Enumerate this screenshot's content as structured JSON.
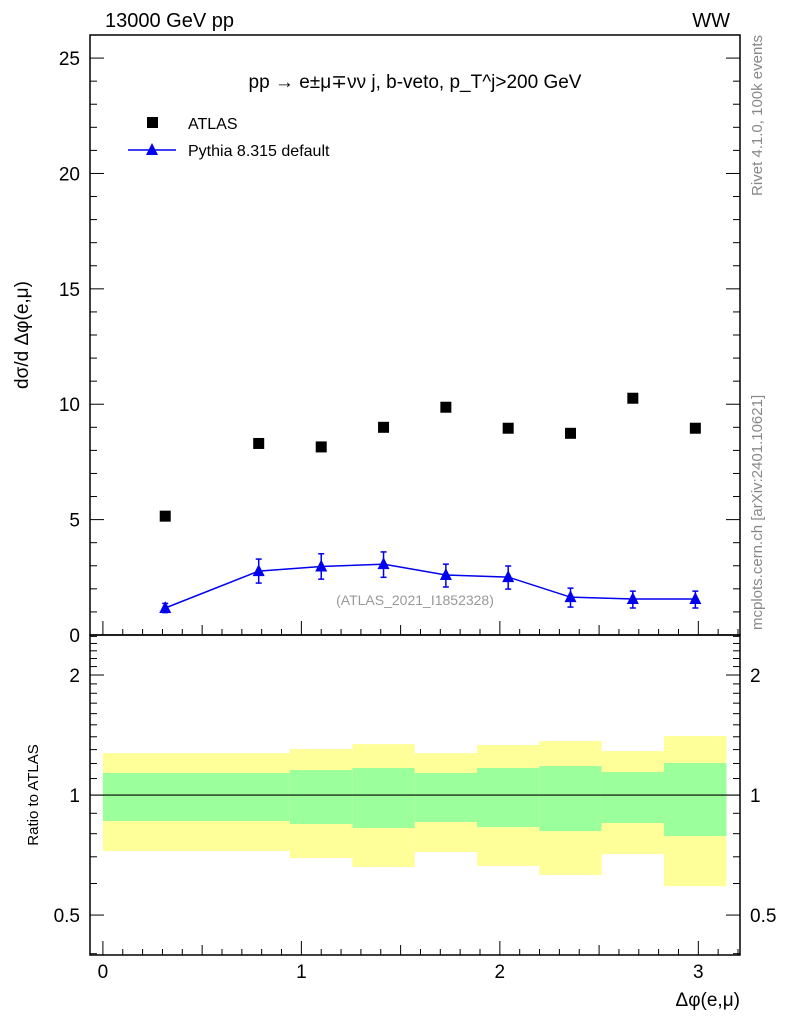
{
  "header": {
    "left": "13000 GeV pp",
    "right": "WW"
  },
  "side_text": {
    "rivet": "Rivet 4.1.0,  100k events",
    "mcplots": "mcplots.cern.ch [arXiv:2401.10621]"
  },
  "colors": {
    "data": "#000000",
    "mc": "#0000ee",
    "band_inner": "#9bff9b",
    "band_outer": "#ffff99",
    "analysis_label": "#999999"
  },
  "chart_data": [
    {
      "type": "scatter",
      "title": "pp → e±μ∓νν j, b-veto, p_T^j>200 GeV",
      "xlabel": "Δφ(e,μ)",
      "ylabel": "dσ/d Δφ(e,μ)",
      "xlim": [
        -0.065,
        3.21
      ],
      "ylim": [
        0,
        26
      ],
      "yticks": [
        0,
        5,
        10,
        15,
        20,
        25
      ],
      "annotation": "(ATLAS_2021_I1852328)",
      "legend_position": "top-left",
      "bin_edges": [
        0,
        0.628,
        0.942,
        1.257,
        1.571,
        1.885,
        2.199,
        2.513,
        2.827,
        3.142
      ],
      "x": [
        0.314,
        0.785,
        1.1,
        1.414,
        1.728,
        2.042,
        2.356,
        2.67,
        2.985
      ],
      "series": [
        {
          "name": "ATLAS",
          "marker": "square",
          "values": [
            5.15,
            8.3,
            8.15,
            9.0,
            9.87,
            8.96,
            8.74,
            10.26,
            8.96
          ]
        },
        {
          "name": "Pythia 8.315 default",
          "marker": "triangle",
          "line": true,
          "values": [
            1.17,
            2.77,
            2.97,
            3.07,
            2.6,
            2.51,
            1.64,
            1.56,
            1.56
          ],
          "err_up": [
            0.2,
            0.52,
            0.55,
            0.53,
            0.47,
            0.48,
            0.39,
            0.34,
            0.34
          ],
          "err_down": [
            0.2,
            0.52,
            0.55,
            0.57,
            0.52,
            0.52,
            0.43,
            0.39,
            0.39
          ]
        }
      ]
    },
    {
      "type": "area",
      "ylabel": "Ratio to ATLAS",
      "xlabel": "Δφ(e,μ)",
      "yscale": "log",
      "ylim": [
        0.397,
        2.52
      ],
      "yticks": [
        0.5,
        1,
        2
      ],
      "xticks": [
        0,
        1,
        2,
        3
      ],
      "reference": 1,
      "bands": {
        "outer_up": [
          1.274,
          1.274,
          1.304,
          1.342,
          1.274,
          1.335,
          1.366,
          1.289,
          1.406
        ],
        "inner_up": [
          1.136,
          1.136,
          1.155,
          1.169,
          1.136,
          1.169,
          1.182,
          1.142,
          1.203
        ],
        "inner_down": [
          0.861,
          0.861,
          0.846,
          0.827,
          0.856,
          0.831,
          0.812,
          0.851,
          0.789
        ],
        "outer_down": [
          0.724,
          0.724,
          0.695,
          0.66,
          0.72,
          0.664,
          0.63,
          0.711,
          0.591
        ]
      }
    }
  ]
}
